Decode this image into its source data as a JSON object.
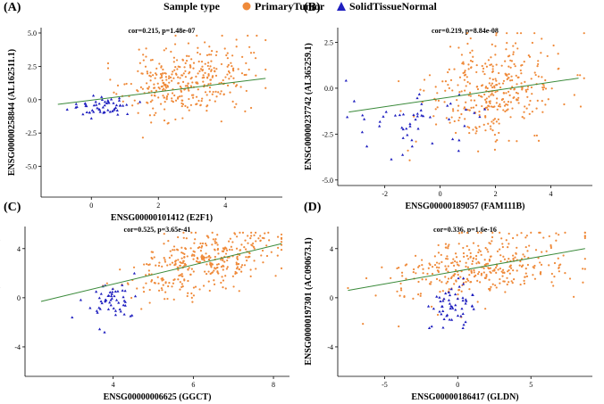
{
  "legend": {
    "title": "Sample type",
    "entries": [
      {
        "label": "PrimaryTumor",
        "color": "#ef8a3a",
        "shape": "circle"
      },
      {
        "label": "SolidTissueNormal",
        "color": "#1f1fbf",
        "shape": "triangle"
      }
    ]
  },
  "colors": {
    "tumor": "#ef8a3a",
    "normal": "#1f1fbf",
    "fit": "#3a8a3a",
    "axis": "#000000"
  },
  "chart_data": [
    {
      "type": "scatter",
      "panel_label": "(A)",
      "annotation": "cor=0.215, p=1.48e-07",
      "xlabel": "ENSG00000101412 (E2F1)",
      "ylabel": "ENSG00000258844 (AL162511.1)",
      "xlim": [
        -1.5,
        5.7
      ],
      "ylim": [
        -7.3,
        5.4
      ],
      "xticks": [
        0,
        2,
        4
      ],
      "yticks": [
        5.0,
        2.5,
        0.0,
        -2.5,
        -5.0
      ],
      "ytick_labels": [
        "5.0",
        "2.5",
        "0.0",
        "-2.5",
        "-5.0"
      ],
      "fit": {
        "x": [
          -1.0,
          5.2
        ],
        "y": [
          -0.35,
          1.6
        ]
      },
      "tumor": {
        "n": 350,
        "x_range": [
          0.5,
          5.2
        ],
        "x_mean": 2.8,
        "x_sd": 0.9,
        "y_mean": 1.3,
        "y_sd": 1.3,
        "slope": 0.35,
        "y_clip": [
          -6.8,
          4.8
        ],
        "seed": 11
      },
      "normal": {
        "n": 55,
        "x_range": [
          -1.0,
          1.8
        ],
        "x_mean": 0.3,
        "x_sd": 0.45,
        "y_mean": -0.5,
        "y_sd": 0.45,
        "slope": 0.1,
        "y_clip": [
          -2.0,
          1.2
        ],
        "seed": 21
      }
    },
    {
      "type": "scatter",
      "panel_label": "(B)",
      "annotation": "cor=0.219, p=8.84e-08",
      "xlabel": "ENSG00000189057 (FAM111B)",
      "ylabel": "ENSG00000237742 (AL365259.1)",
      "xlim": [
        -3.7,
        5.5
      ],
      "ylim": [
        -5.3,
        3.3
      ],
      "xticks": [
        -2,
        0,
        2,
        4
      ],
      "yticks": [
        2.5,
        0.0,
        -2.5,
        -5.0
      ],
      "ytick_labels": [
        "2.5",
        "0.0",
        "-2.5",
        "-5.0"
      ],
      "fit": {
        "x": [
          -3.3,
          5.0
        ],
        "y": [
          -1.3,
          0.55
        ]
      },
      "tumor": {
        "n": 350,
        "x_range": [
          -1.5,
          5.2
        ],
        "x_mean": 2.0,
        "x_sd": 1.2,
        "y_mean": 0.0,
        "y_sd": 1.4,
        "slope": 0.2,
        "y_clip": [
          -5.0,
          3.0
        ],
        "seed": 31
      },
      "normal": {
        "n": 50,
        "x_range": [
          -3.4,
          2.5
        ],
        "x_mean": -0.6,
        "x_sd": 1.3,
        "y_mean": -1.8,
        "y_sd": 0.9,
        "slope": 0.1,
        "y_clip": [
          -4.8,
          0.9
        ],
        "seed": 41
      }
    },
    {
      "type": "scatter",
      "panel_label": "(C)",
      "annotation": "cor=0.525, p=3.65e-41",
      "xlabel": "ENSG00000006625 (GGCT)",
      "ylabel": "ENSG00000197301 (AC090673.1)",
      "xlim": [
        1.8,
        8.4
      ],
      "ylim": [
        -6.4,
        5.8
      ],
      "xticks": [
        4,
        6,
        8
      ],
      "yticks": [
        4,
        0,
        -4
      ],
      "ytick_labels": [
        "4",
        "0",
        "-4"
      ],
      "fit": {
        "x": [
          2.2,
          8.2
        ],
        "y": [
          -0.3,
          4.4
        ]
      },
      "tumor": {
        "n": 360,
        "x_range": [
          3.6,
          8.2
        ],
        "x_mean": 6.2,
        "x_sd": 0.9,
        "y_mean": 2.7,
        "y_sd": 1.2,
        "slope": 0.75,
        "y_clip": [
          -6.2,
          5.3
        ],
        "seed": 51
      },
      "normal": {
        "n": 55,
        "x_range": [
          2.9,
          5.0
        ],
        "x_mean": 3.9,
        "x_sd": 0.35,
        "y_mean": -0.2,
        "y_sd": 0.9,
        "slope": 0.4,
        "y_clip": [
          -2.8,
          2.0
        ],
        "seed": 61
      }
    },
    {
      "type": "scatter",
      "panel_label": "(D)",
      "annotation": "cor=0.336, p=1.6e-16",
      "xlabel": "ENSG00000186417 (GLDN)",
      "ylabel": "ENSG00000197301 (AC090673.1)",
      "xlim": [
        -8.2,
        9.2
      ],
      "ylim": [
        -6.4,
        5.8
      ],
      "xticks": [
        -5,
        0,
        5
      ],
      "yticks": [
        4,
        0,
        -4
      ],
      "ytick_labels": [
        "4",
        "0",
        "-4"
      ],
      "fit": {
        "x": [
          -7.5,
          8.7
        ],
        "y": [
          0.6,
          4.0
        ]
      },
      "tumor": {
        "n": 360,
        "x_range": [
          -7.5,
          8.7
        ],
        "x_mean": 1.5,
        "x_sd": 3.2,
        "y_mean": 2.6,
        "y_sd": 1.3,
        "slope": 0.2,
        "y_clip": [
          -6.2,
          5.3
        ],
        "seed": 71
      },
      "normal": {
        "n": 55,
        "x_range": [
          -2.0,
          1.2
        ],
        "x_mean": -0.4,
        "x_sd": 0.7,
        "y_mean": -0.4,
        "y_sd": 1.0,
        "slope": 0.3,
        "y_clip": [
          -3.2,
          1.6
        ],
        "seed": 81
      }
    }
  ]
}
